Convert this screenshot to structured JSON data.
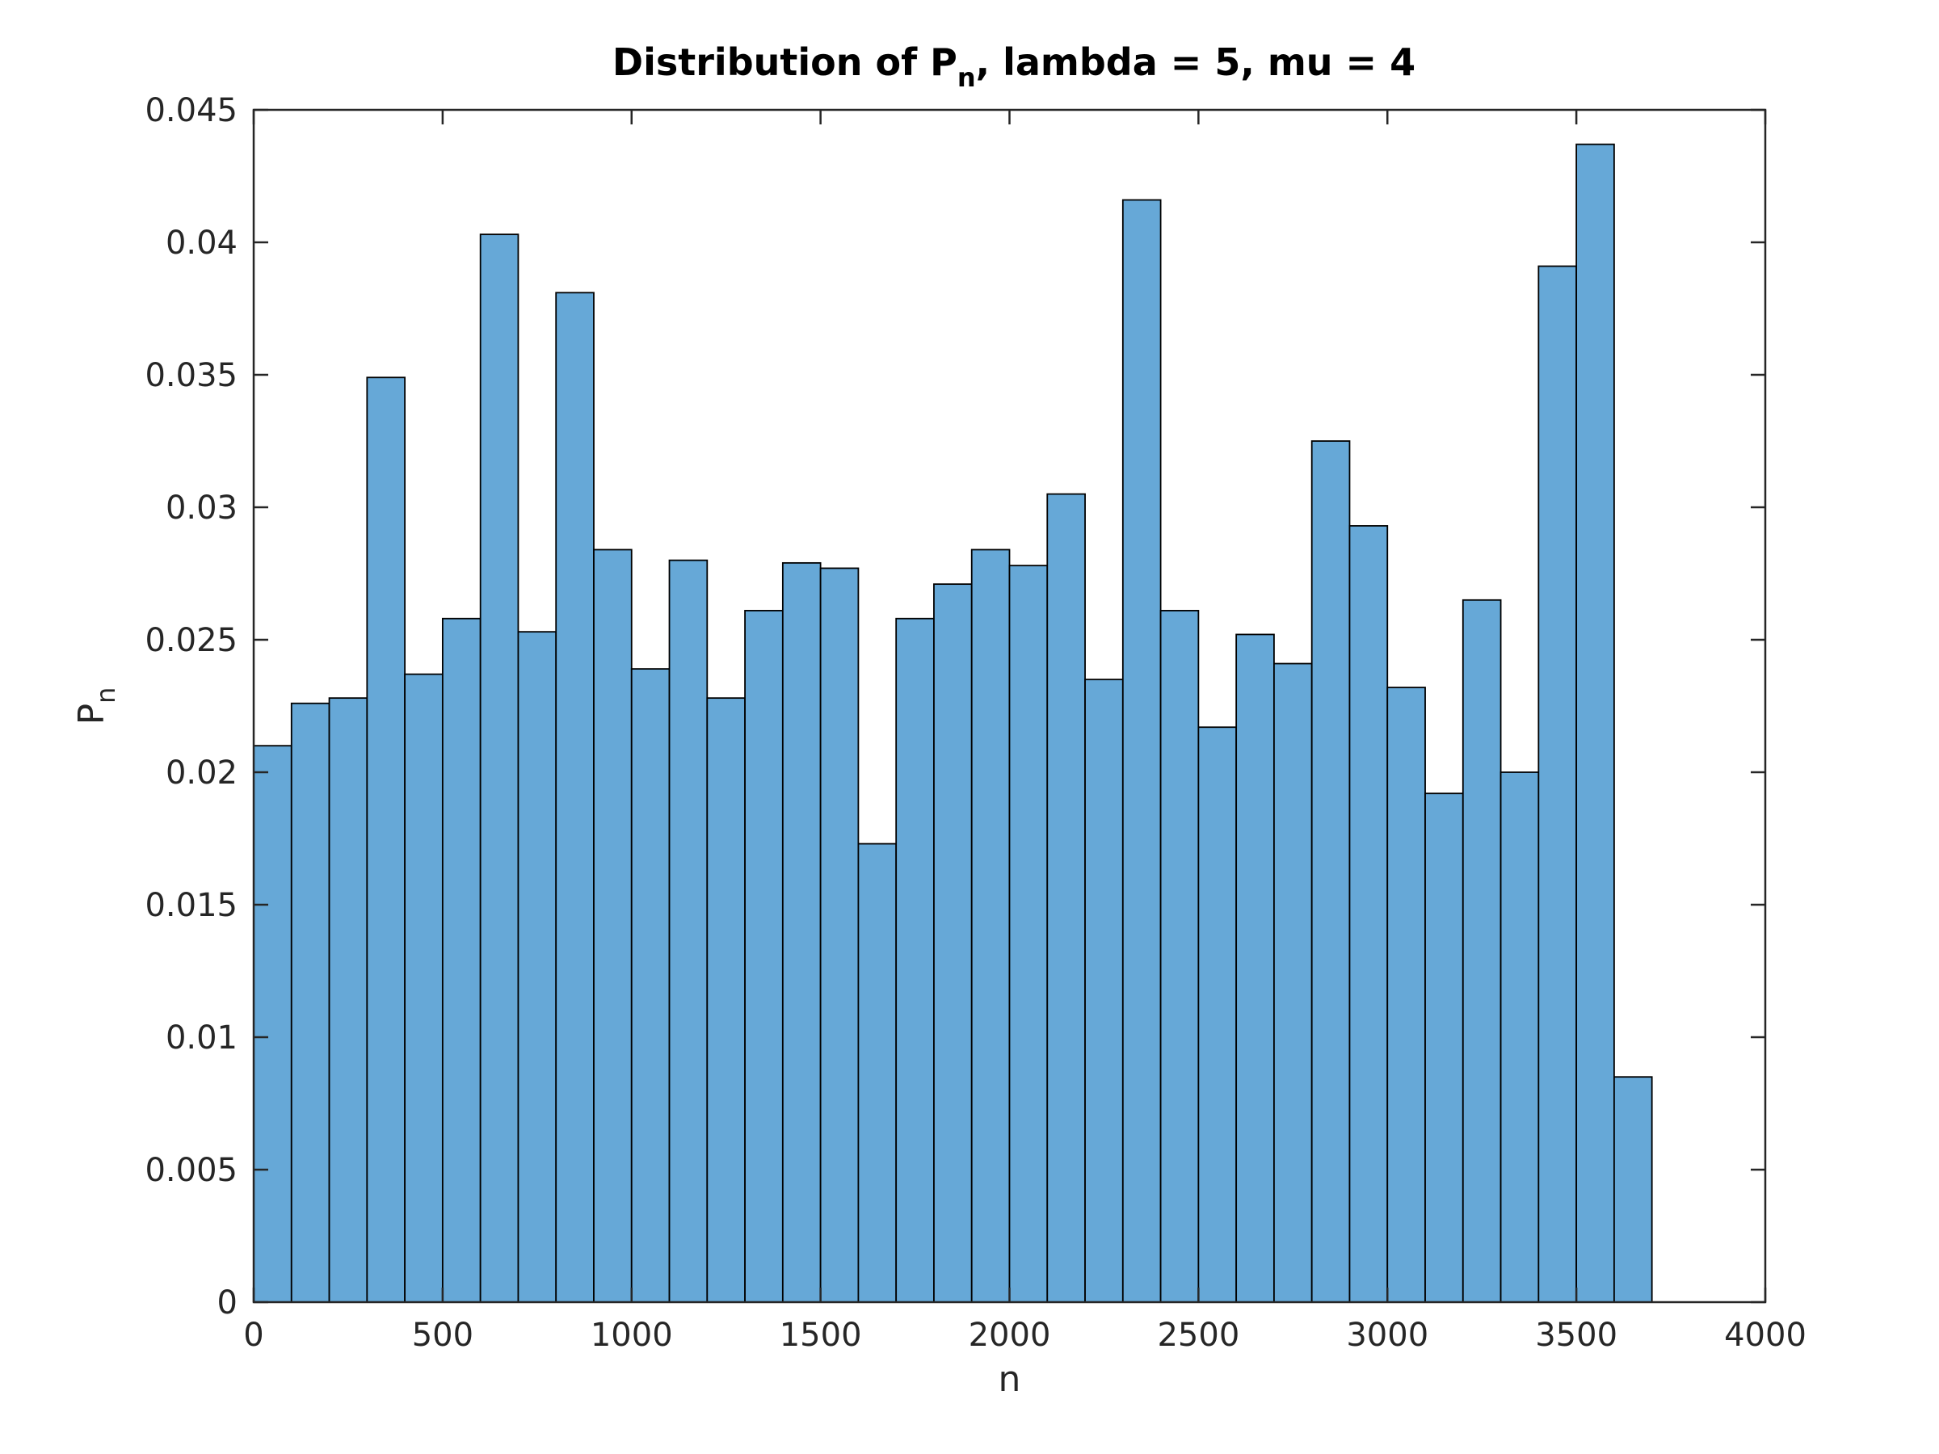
{
  "chart_data": {
    "type": "bar",
    "title_main": "Distribution of P",
    "title_sub": "n",
    "title_rest": ", lambda = 5, mu = 4",
    "xlabel": "n",
    "ylabel_main": "P",
    "ylabel_sub": "n",
    "xlim": [
      0,
      4000
    ],
    "ylim": [
      0,
      0.045
    ],
    "bin_width": 100,
    "xticks": [
      0,
      500,
      1000,
      1500,
      2000,
      2500,
      3000,
      3500,
      4000
    ],
    "xtick_labels": [
      "0",
      "500",
      "1000",
      "1500",
      "2000",
      "2500",
      "3000",
      "3500",
      "4000"
    ],
    "yticks": [
      0,
      0.005,
      0.01,
      0.015,
      0.02,
      0.025,
      0.03,
      0.035,
      0.04,
      0.045
    ],
    "ytick_labels": [
      "0",
      "0.005",
      "0.01",
      "0.015",
      "0.02",
      "0.025",
      "0.03",
      "0.035",
      "0.04",
      "0.045"
    ],
    "bin_edges_start": [
      0,
      100,
      200,
      300,
      400,
      500,
      600,
      700,
      800,
      900,
      1000,
      1100,
      1200,
      1300,
      1400,
      1500,
      1600,
      1700,
      1800,
      1900,
      2000,
      2100,
      2200,
      2300,
      2400,
      2500,
      2600,
      2700,
      2800,
      2900,
      3000,
      3100,
      3200,
      3300,
      3400,
      3500,
      3600
    ],
    "values": [
      0.021,
      0.0226,
      0.0228,
      0.0349,
      0.0237,
      0.0258,
      0.0403,
      0.0253,
      0.0381,
      0.0284,
      0.0239,
      0.028,
      0.0228,
      0.0261,
      0.0279,
      0.0277,
      0.0173,
      0.0258,
      0.0271,
      0.0284,
      0.0278,
      0.0305,
      0.0235,
      0.0416,
      0.0261,
      0.0217,
      0.0252,
      0.0241,
      0.0325,
      0.0293,
      0.0232,
      0.0192,
      0.0265,
      0.02,
      0.0391,
      0.0437,
      0.0085
    ],
    "bar_color": "#66a8d7",
    "edge_color": "#000000",
    "grid": false,
    "legend": false
  }
}
